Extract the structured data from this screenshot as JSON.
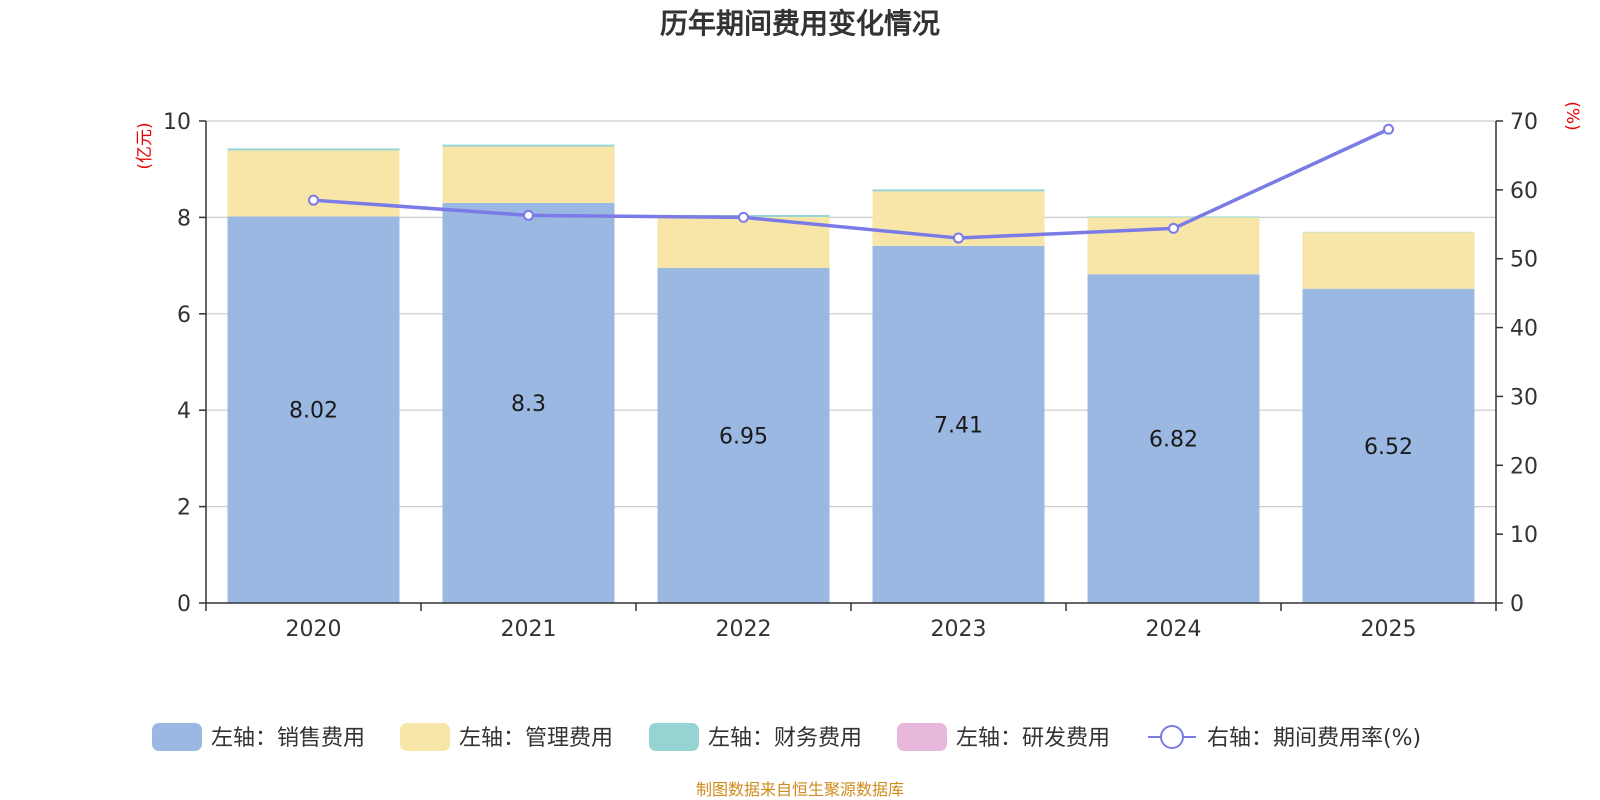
{
  "chart_data": {
    "type": "bar",
    "title": "历年期间费用变化情况",
    "categories": [
      "2020",
      "2021",
      "2022",
      "2023",
      "2024",
      "2025"
    ],
    "left_axis": {
      "unit": "(亿元)",
      "ylim": [
        0,
        10
      ],
      "ticks": [
        "0",
        "2",
        "4",
        "6",
        "8",
        "10"
      ]
    },
    "right_axis": {
      "unit": "(%)",
      "ylim": [
        0,
        70
      ],
      "ticks": [
        "0",
        "10",
        "20",
        "30",
        "40",
        "50",
        "60",
        "70"
      ]
    },
    "series": [
      {
        "name": "左轴：销售费用",
        "axis": "left",
        "stack": true,
        "color": "#9bb8e2",
        "values": [
          8.02,
          8.3,
          6.95,
          7.41,
          6.82,
          6.52
        ],
        "labels": [
          "8.02",
          "8.3",
          "6.95",
          "7.41",
          "6.82",
          "6.52"
        ]
      },
      {
        "name": "左轴：管理费用",
        "axis": "left",
        "stack": true,
        "color": "#f7e6a7",
        "values": [
          1.37,
          1.17,
          1.06,
          1.13,
          1.18,
          1.17
        ]
      },
      {
        "name": "左轴：财务费用",
        "axis": "left",
        "stack": true,
        "color": "#96d4d4",
        "values": [
          0.04,
          0.04,
          0.04,
          0.04,
          0.02,
          0.01
        ]
      },
      {
        "name": "左轴：研发费用",
        "axis": "left",
        "stack": true,
        "color": "#e8b8dc",
        "values": [
          0,
          0,
          0,
          0,
          0,
          0
        ]
      },
      {
        "name": "右轴：期间费用率(%)",
        "axis": "right",
        "type": "line",
        "color": "#7b7be8",
        "values": [
          58.5,
          56.3,
          56.0,
          53.0,
          54.4,
          68.8
        ]
      }
    ],
    "source": "制图数据来自恒生聚源数据库"
  },
  "colors": {
    "title": "#333333",
    "axis": "#333333",
    "grid": "#cccccc",
    "unit": "#e60000",
    "source": "#d08a1c",
    "label": "#1a1a1a"
  }
}
